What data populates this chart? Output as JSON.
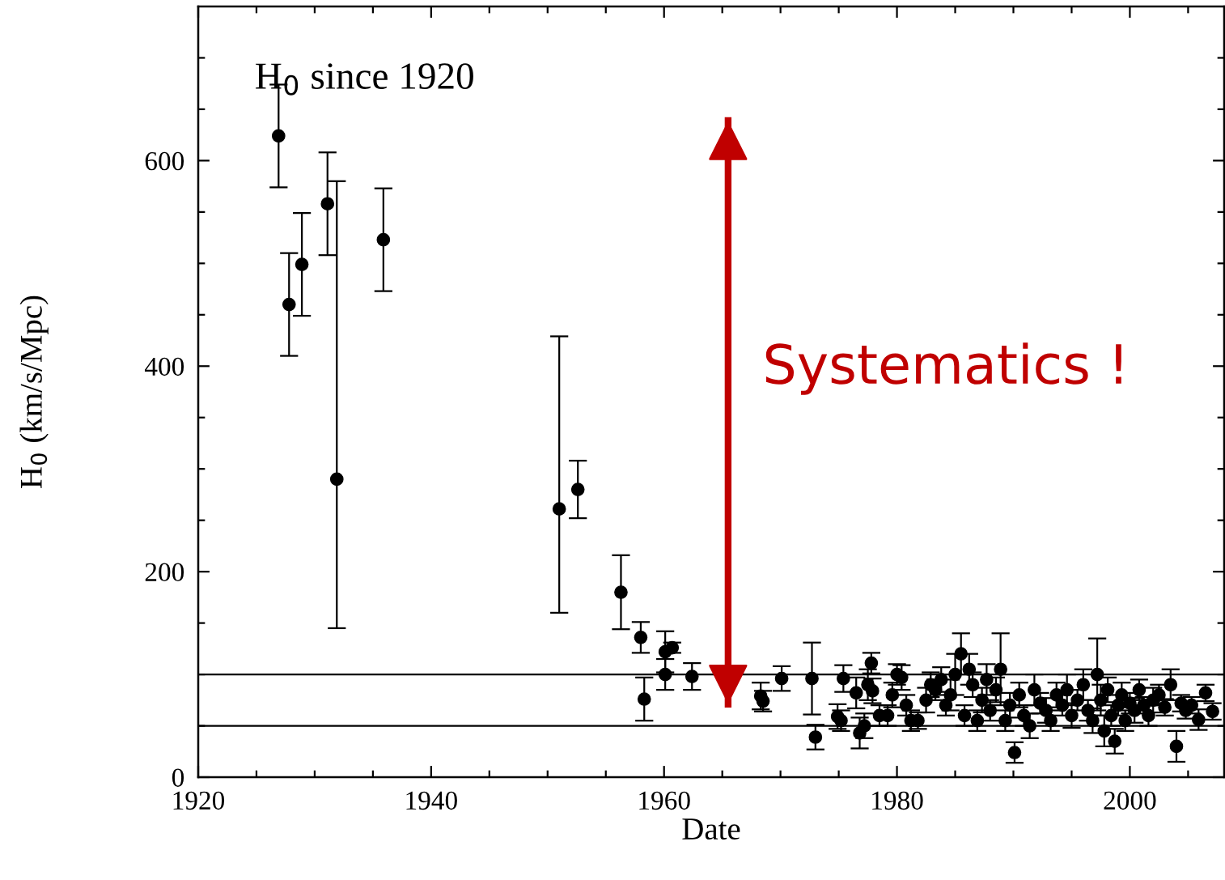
{
  "chart_data": {
    "type": "scatter",
    "title": "H$_{0}$ since 1920",
    "xlabel": "Date",
    "ylabel": "H$_{0}$ (km/s/Mpc)",
    "annotations": [
      "Systematics !"
    ],
    "xlim": [
      1920,
      2008.1
    ],
    "ylim": [
      0,
      750
    ],
    "xticks": [
      1920,
      {
        "value": 1925,
        "label": null
      },
      {
        "value": 1930,
        "label": null
      },
      {
        "value": 1935,
        "label": null
      },
      1940,
      {
        "value": 1945,
        "label": null
      },
      {
        "value": 1950,
        "label": null
      },
      {
        "value": 1955,
        "label": null
      },
      1960,
      {
        "value": 1965,
        "label": null
      },
      {
        "value": 1970,
        "label": null
      },
      {
        "value": 1975,
        "label": null
      },
      1980,
      {
        "value": 1985,
        "label": null
      },
      {
        "value": 1990,
        "label": null
      },
      {
        "value": 1995,
        "label": null
      },
      2000,
      {
        "value": 2005,
        "label": null
      }
    ],
    "yticks": [
      0,
      {
        "value": 50,
        "label": null
      },
      {
        "value": 100,
        "label": null
      },
      {
        "value": 150,
        "label": null
      },
      200,
      {
        "value": 250,
        "label": null
      },
      {
        "value": 300,
        "label": null
      },
      {
        "value": 350,
        "label": null
      },
      400,
      {
        "value": 450,
        "label": null
      },
      {
        "value": 500,
        "label": null
      },
      {
        "value": 550,
        "label": null
      },
      600,
      {
        "value": 650,
        "label": null
      },
      {
        "value": 700,
        "label": null
      }
    ],
    "ref_lines": [
      {
        "axis": "y",
        "value": 100,
        "color": "#000000",
        "line_style": "solid"
      },
      {
        "axis": "y",
        "value": 50,
        "color": "#000000",
        "line_style": "solid"
      }
    ],
    "marker": "circle",
    "grid": false,
    "legend": false,
    "series": [
      {
        "type": "line",
        "color": "#c00000",
        "x": [
          1965.5,
          1965.5
        ],
        "values": [
          71,
          639
        ],
        "line_style": "solid",
        "marker": "none"
      },
      {
        "color": "#000000",
        "x": [
          1926.9,
          1927.8,
          1928.9,
          1931.1,
          1931.9,
          1935.9,
          1951.0,
          1952.6,
          1956.3,
          1958.0,
          1958.3,
          1960.1,
          1960.1,
          1960.7,
          1962.4,
          1968.3,
          1968.5,
          1970.1,
          1972.7,
          1973.0,
          1974.9,
          1975.2,
          1975.4,
          1976.5,
          1976.8,
          1977.2,
          1977.5,
          1977.8,
          1977.9,
          1978.5,
          1979.2,
          1979.6,
          1980.0,
          1980.4,
          1980.8,
          1981.2,
          1981.8,
          1982.5,
          1982.9,
          1983.3,
          1983.8,
          1984.2,
          1984.6,
          1985.0,
          1985.5,
          1985.8,
          1986.2,
          1986.5,
          1986.9,
          1987.3,
          1987.7,
          1988.0,
          1988.5,
          1988.9,
          1989.3,
          1989.7,
          1990.1,
          1990.5,
          1990.9,
          1991.4,
          1991.8,
          1992.3,
          1992.8,
          1993.2,
          1993.7,
          1994.2,
          1994.6,
          1995.0,
          1995.5,
          1996.0,
          1996.4,
          1996.8,
          1997.2,
          1997.5,
          1997.8,
          1998.1,
          1998.4,
          1998.7,
          1999.0,
          1999.3,
          1999.6,
          2000.0,
          2000.4,
          2000.8,
          2001.2,
          2001.6,
          2002.0,
          2002.5,
          2003.0,
          2003.5,
          2004.0,
          2004.4,
          2004.8,
          2005.3,
          2005.9,
          2006.5,
          2007.1
        ],
        "values": [
          624,
          460,
          499,
          558,
          290,
          523,
          261,
          280,
          180,
          136,
          76,
          122,
          100,
          126,
          98,
          79,
          74,
          96,
          96,
          39,
          59,
          55,
          96,
          82,
          43,
          50,
          90,
          111,
          84,
          60,
          60,
          80,
          100,
          97,
          70,
          55,
          55,
          75,
          90,
          85,
          95,
          70,
          80,
          100,
          120,
          60,
          105,
          90,
          55,
          75,
          95,
          65,
          85,
          105,
          55,
          70,
          24,
          80,
          60,
          50,
          85,
          72,
          65,
          55,
          80,
          70,
          85,
          60,
          75,
          90,
          65,
          55,
          100,
          75,
          45,
          85,
          60,
          35,
          70,
          80,
          55,
          72,
          65,
          85,
          70,
          60,
          75,
          80,
          68,
          90,
          30,
          72,
          65,
          70,
          56,
          82,
          64
        ],
        "errors": [
          50,
          50,
          50,
          50,
          [
            145,
            580
          ],
          50,
          [
            160,
            429
          ],
          28,
          36,
          15,
          21,
          20,
          15,
          5,
          13,
          13,
          10,
          12,
          35,
          12,
          12,
          10,
          13,
          15,
          15,
          12,
          15,
          10,
          12,
          10,
          10,
          12,
          10,
          12,
          10,
          10,
          8,
          12,
          12,
          10,
          12,
          10,
          15,
          20,
          20,
          10,
          15,
          12,
          10,
          12,
          15,
          10,
          12,
          35,
          10,
          12,
          10,
          12,
          10,
          12,
          15,
          10,
          12,
          10,
          12,
          10,
          15,
          12,
          10,
          15,
          10,
          12,
          35,
          15,
          15,
          12,
          10,
          12,
          10,
          12,
          10,
          10,
          12,
          10,
          8,
          10,
          12,
          10,
          8,
          15,
          15,
          8,
          8,
          8,
          10,
          8,
          8
        ]
      }
    ]
  }
}
